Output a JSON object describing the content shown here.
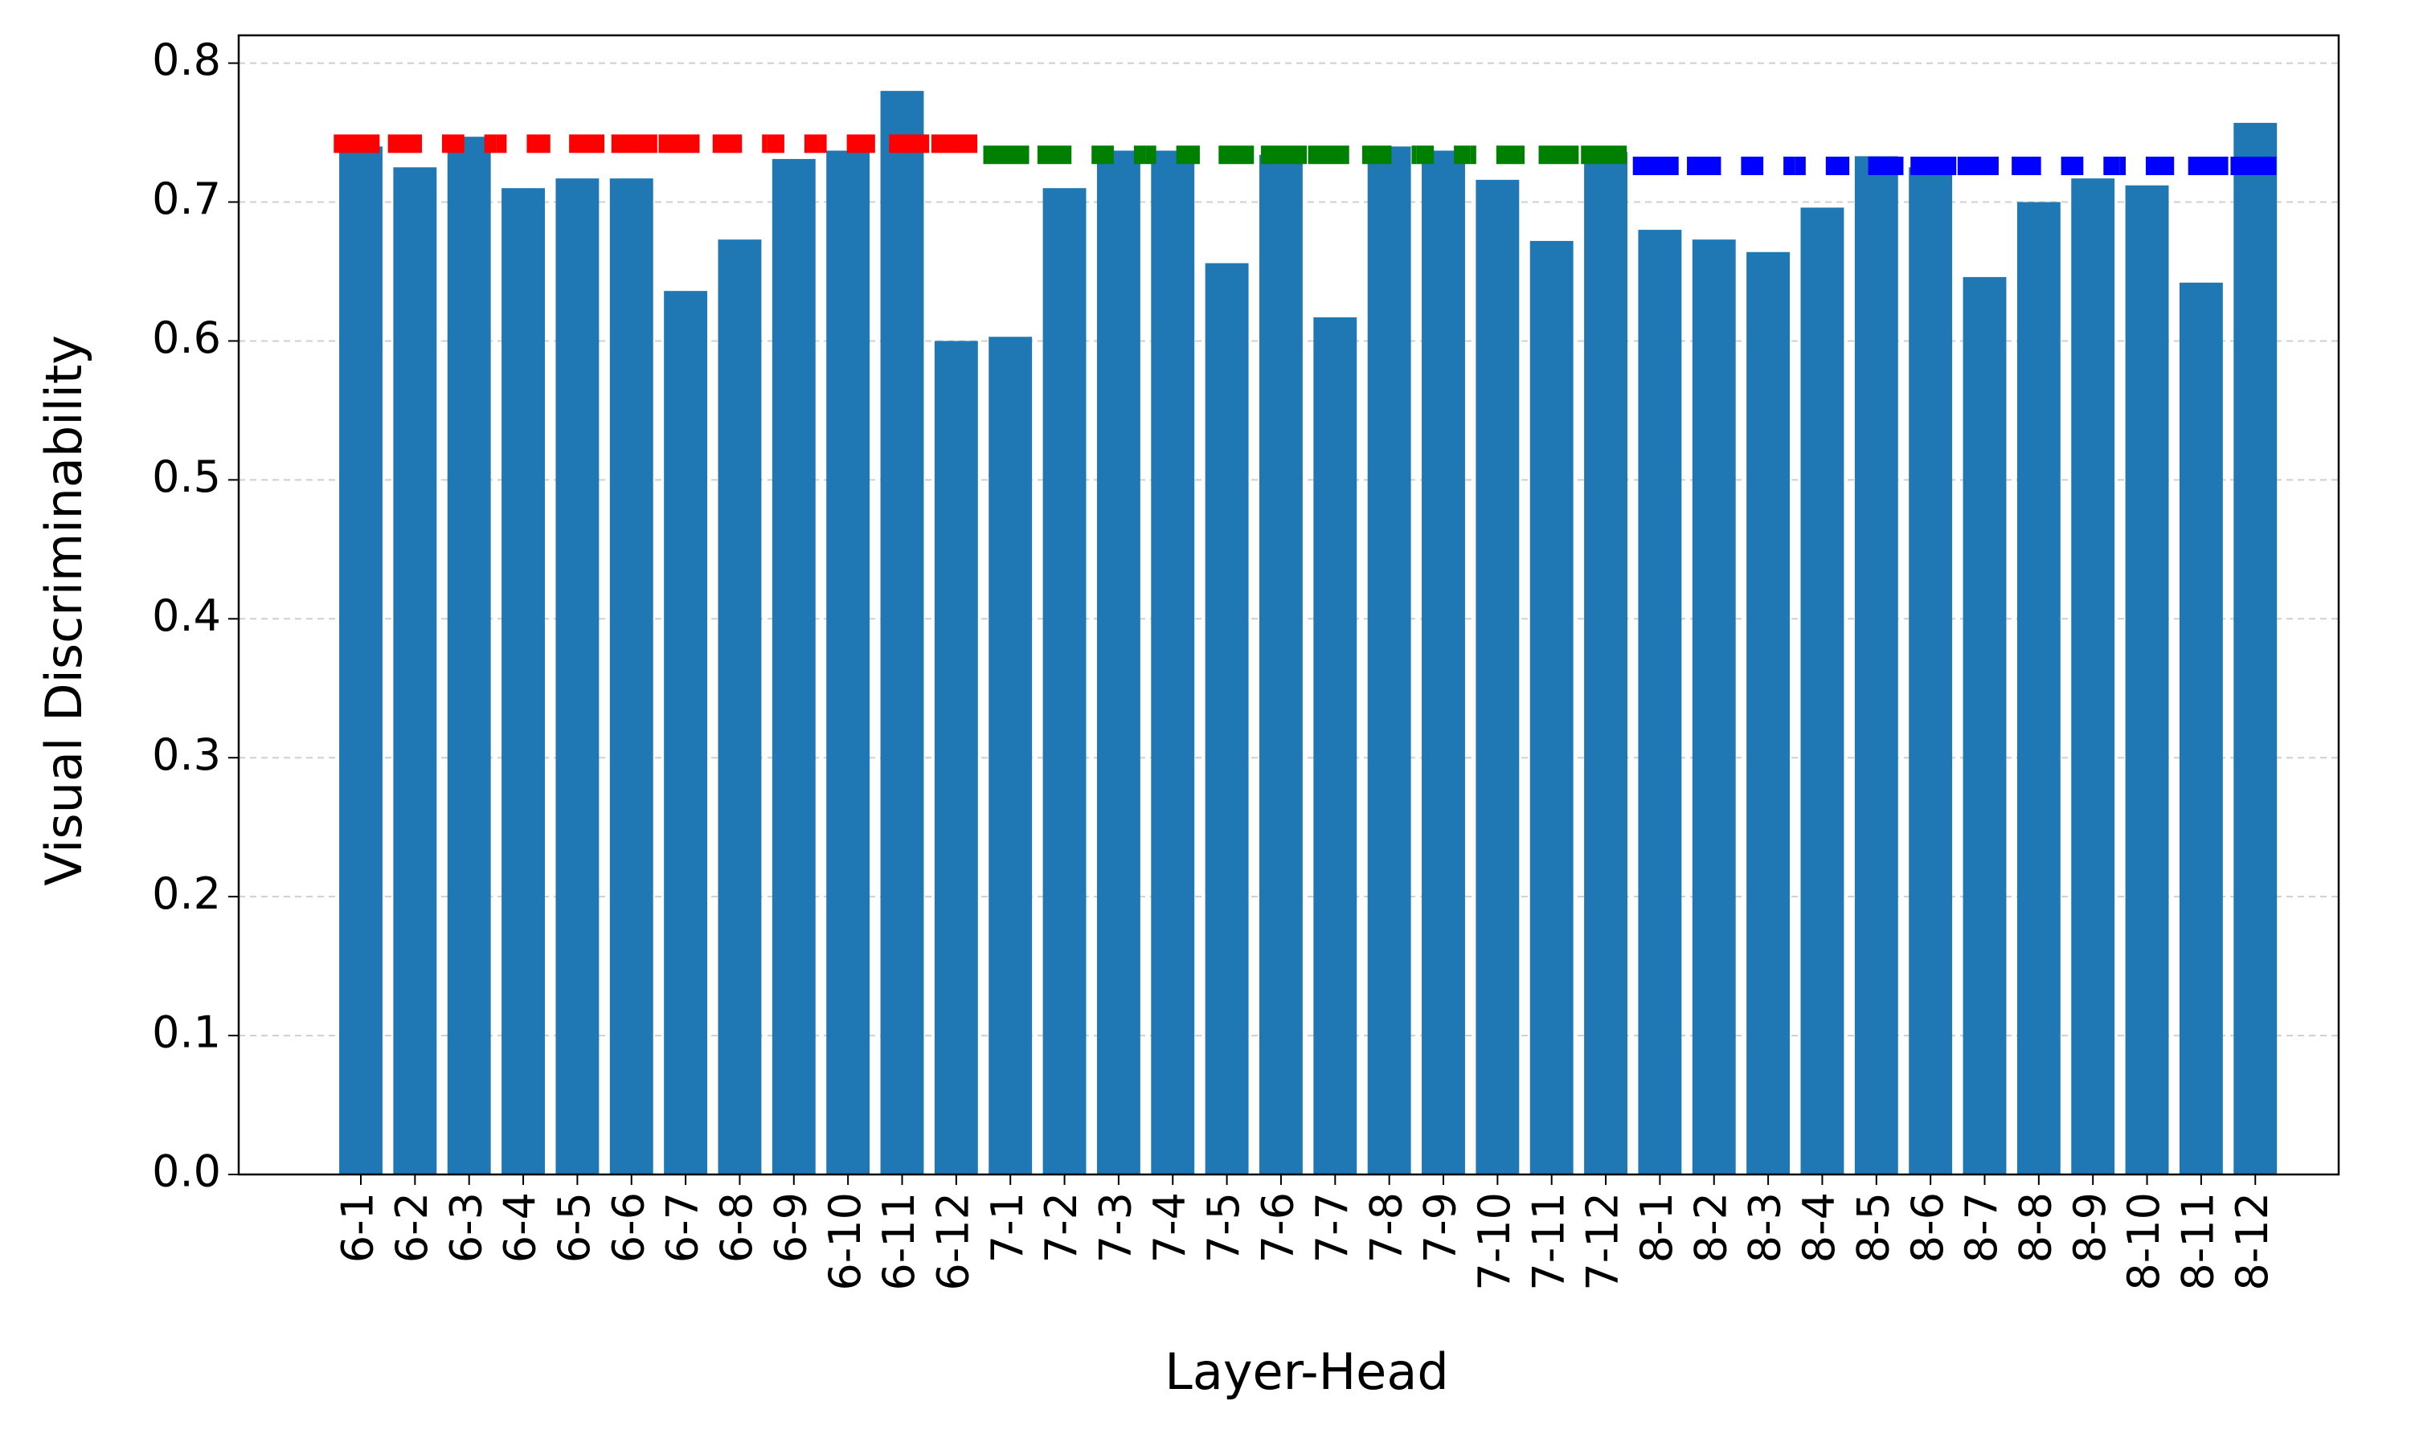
{
  "chart_data": {
    "type": "bar",
    "x_label": "Layer-Head",
    "y_label": "Visual Discriminability",
    "categories": [
      "6-1",
      "6-2",
      "6-3",
      "6-4",
      "6-5",
      "6-6",
      "6-7",
      "6-8",
      "6-9",
      "6-10",
      "6-11",
      "6-12",
      "7-1",
      "7-2",
      "7-3",
      "7-4",
      "7-5",
      "7-6",
      "7-7",
      "7-8",
      "7-9",
      "7-10",
      "7-11",
      "7-12",
      "8-1",
      "8-2",
      "8-3",
      "8-4",
      "8-5",
      "8-6",
      "8-7",
      "8-8",
      "8-9",
      "8-10",
      "8-11",
      "8-12"
    ],
    "series": [
      {
        "type": "bar",
        "color": "#1f77b4",
        "values": [
          0.74,
          0.725,
          0.747,
          0.71,
          0.717,
          0.717,
          0.636,
          0.673,
          0.731,
          0.737,
          0.78,
          0.6,
          0.603,
          0.71,
          0.737,
          0.737,
          0.656,
          0.734,
          0.617,
          0.74,
          0.737,
          0.716,
          0.672,
          0.736,
          0.68,
          0.673,
          0.664,
          0.696,
          0.733,
          0.725,
          0.646,
          0.7,
          0.717,
          0.712,
          0.642,
          0.757
        ]
      },
      {
        "type": "line",
        "linestyle": "dashed",
        "color": "#ff0000",
        "values": [
          0.742,
          0.742,
          0.742,
          0.742,
          0.742,
          0.742,
          0.742,
          0.742,
          0.742,
          0.742,
          0.742,
          0.742,
          null,
          null,
          null,
          null,
          null,
          null,
          null,
          null,
          null,
          null,
          null,
          null,
          null,
          null,
          null,
          null,
          null,
          null,
          null,
          null,
          null,
          null,
          null,
          null
        ]
      },
      {
        "type": "line",
        "linestyle": "dashed",
        "color": "#008000",
        "values": [
          null,
          null,
          null,
          null,
          null,
          null,
          null,
          null,
          null,
          null,
          null,
          null,
          0.734,
          0.734,
          0.734,
          0.734,
          0.734,
          0.734,
          0.734,
          0.734,
          0.734,
          0.734,
          0.734,
          0.734,
          null,
          null,
          null,
          null,
          null,
          null,
          null,
          null,
          null,
          null,
          null,
          null
        ]
      },
      {
        "type": "line",
        "linestyle": "dashed",
        "color": "#0000ff",
        "values": [
          null,
          null,
          null,
          null,
          null,
          null,
          null,
          null,
          null,
          null,
          null,
          null,
          null,
          null,
          null,
          null,
          null,
          null,
          null,
          null,
          null,
          null,
          null,
          null,
          0.726,
          0.726,
          0.726,
          0.726,
          0.726,
          0.726,
          0.726,
          0.726,
          0.726,
          0.726,
          0.726,
          0.726
        ]
      }
    ],
    "ylim": [
      0,
      0.82
    ],
    "yticks": [
      {
        "value": 0,
        "label": "0.0"
      },
      0.1,
      0.2,
      0.3,
      0.4,
      0.5,
      0.6,
      0.7,
      0.8
    ],
    "grid": true
  }
}
